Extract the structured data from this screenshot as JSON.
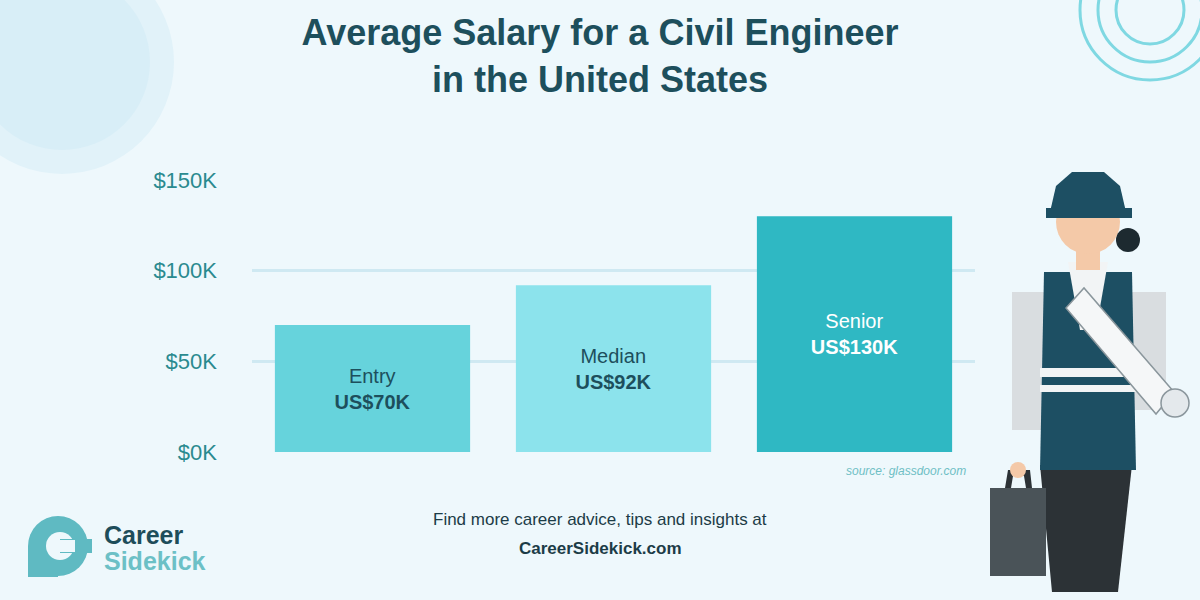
{
  "chart_data": {
    "type": "bar",
    "title": "Average Salary for a Civil Engineer in the United States",
    "categories": [
      "Entry",
      "Median",
      "Senior"
    ],
    "values": [
      70,
      92,
      130
    ],
    "value_labels": [
      "US$70K",
      "US$92K",
      "US$130K"
    ],
    "colors": [
      "#66d3dc",
      "#8ce3ec",
      "#2fb8c3"
    ],
    "ylim": [
      0,
      150
    ],
    "yticks": [
      {
        "value": 0,
        "label": "$0K"
      },
      {
        "value": 50,
        "label": "$50K"
      },
      {
        "value": 100,
        "label": "$100K"
      },
      {
        "value": 150,
        "label": "$150K"
      }
    ],
    "grid": true,
    "data_labels": true,
    "tick_labels": "y",
    "source": "source: glassdoor.com",
    "footer": [
      "Find more career advice, tips and insights at",
      "CareerSidekick.com"
    ],
    "logo": [
      "Career",
      "Sidekick"
    ]
  }
}
